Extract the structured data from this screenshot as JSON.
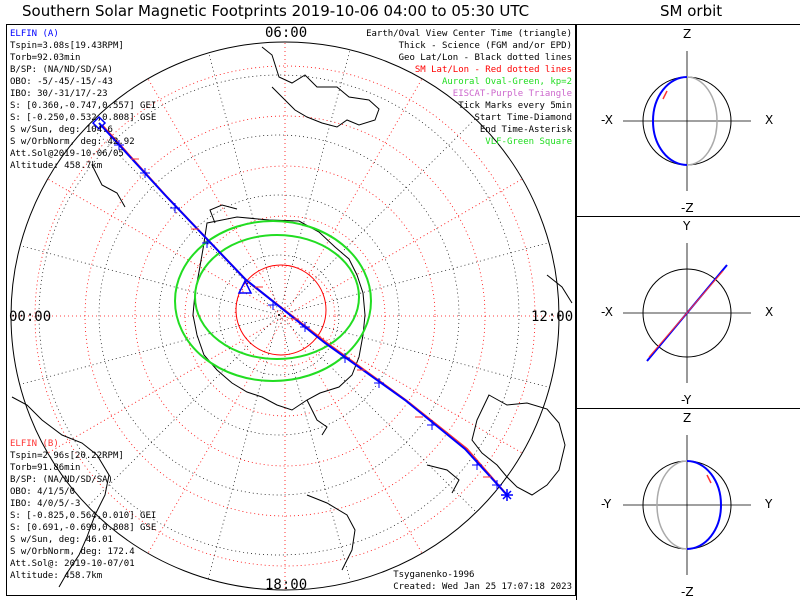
{
  "title": "Southern Solar Magnetic Footprints 2019-10-06 04:00 to 05:30 UTC",
  "orbit_title": "SM orbit",
  "hour_labels": {
    "top": "06:00",
    "left": "00:00",
    "right": "12:00",
    "bottom": "18:00"
  },
  "legend": [
    {
      "text": "Earth/Oval View Center Time (triangle)",
      "color": "#000000"
    },
    {
      "text": "Thick - Science (FGM and/or EPD)",
      "color": "#000000"
    },
    {
      "text": "Geo Lat/Lon - Black dotted lines",
      "color": "#000000"
    },
    {
      "text": "SM Lat/Lon - Red dotted lines",
      "color": "#ff0000"
    },
    {
      "text": "Auroral Oval-Green, kp=2",
      "color": "#22dd22"
    },
    {
      "text": "EISCAT-Purple Triangle",
      "color": "#cc66cc"
    },
    {
      "text": "Tick Marks every 5min",
      "color": "#000000"
    },
    {
      "text": "Start Time-Diamond",
      "color": "#000000"
    },
    {
      "text": "End Time-Asterisk",
      "color": "#000000"
    },
    {
      "text": "VLF-Green Square",
      "color": "#22dd22"
    }
  ],
  "elfin_a": {
    "name": "ELFIN (A)",
    "color": "#0000ff",
    "lines": [
      "Tspin=3.08s[19.43RPM]",
      "Torb=92.03min",
      "B/SP: (NA/ND/SD/SA)",
      "OBO: -5/-45/-15/-43",
      "IBO: 30/-31/17/-23",
      "S: [0.360,-0.747,0.557] GEI",
      "S: [-0.250,0.532,0.808] GSE",
      "S w/Sun, deg: 104.6",
      "S w/OrbNorm, deg: 42.92",
      "Att.Sol@2019-10-06/05",
      "Altitude: 458.7km"
    ]
  },
  "elfin_b": {
    "name": "ELFIN (B)",
    "color": "#ff3333",
    "lines": [
      "Tspin=2.96s[20.22RPM]",
      "Torb=91.86min",
      "B/SP: (NA/ND/SD/SA)",
      "OBO: 4/1/5/0",
      "IBO: 4/0/5/-3",
      "S: [-0.825,0.564,0.010] GEI",
      "S: [0.691,-0.690,0.808] GSE",
      "S w/Sun, deg: 46.01",
      "S w/OrbNorm, deg: 172.4",
      "Att.Sol@: 2019-10-07/01",
      "Altitude: 458.7km"
    ]
  },
  "credit": {
    "author": "Tsyganenko-1996",
    "created": "Created: Wed Jan 25 17:07:18 2023"
  },
  "orbit_axes": [
    {
      "top": "Z",
      "bottom": "-Z",
      "left": "-X",
      "right": "X"
    },
    {
      "top": "Y",
      "bottom": "-Y",
      "left": "-X",
      "right": "X"
    },
    {
      "top": "Z",
      "bottom": "-Z",
      "left": "-Y",
      "right": "Y"
    }
  ],
  "colors": {
    "elfin_a": "#0000ff",
    "elfin_b": "#ff3333",
    "oval": "#22dd22",
    "sm_grid": "#ff0000",
    "geo_grid": "#000000"
  }
}
